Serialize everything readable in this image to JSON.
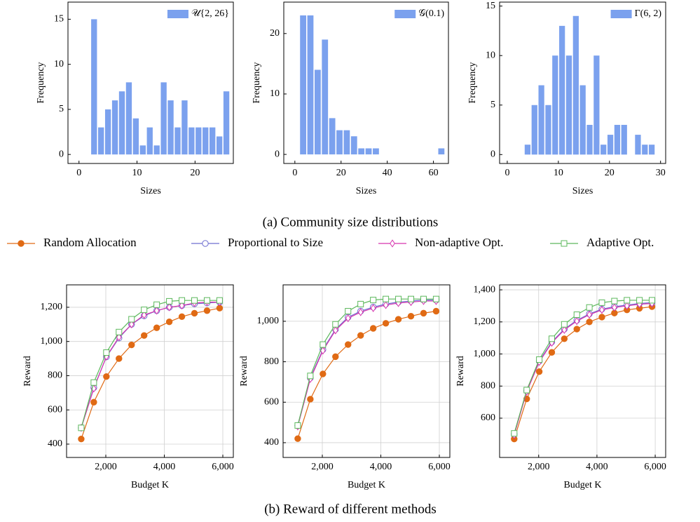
{
  "chart_data": [
    {
      "type": "histogram",
      "xlabel": "Sizes",
      "ylabel": "Frequency",
      "legend": "upper right",
      "series": [
        {
          "name": "𝒰{2, 26}",
          "color": "#7ba1ee",
          "values": [
            15,
            3,
            5,
            6,
            7,
            8,
            4,
            1,
            3,
            1,
            8,
            6,
            3,
            6,
            3,
            3,
            3,
            3,
            2,
            7
          ]
        }
      ],
      "bins": [
        2,
        3.2,
        4.4,
        5.6,
        6.8,
        8,
        9.2,
        10.4,
        11.6,
        12.8,
        14,
        15.2,
        16.4,
        17.6,
        18.8,
        20,
        21.2,
        22.4,
        23.6,
        24.8,
        26
      ],
      "xlim": [
        -1.9,
        26.6
      ],
      "ylim": [
        -1,
        16.9
      ],
      "xticks": [
        0,
        10,
        20
      ],
      "yticks": [
        0,
        5,
        10,
        15
      ]
    },
    {
      "type": "histogram",
      "xlabel": "Sizes",
      "ylabel": "Frequency",
      "legend": "upper right",
      "series": [
        {
          "name": "𝒢(0.1)",
          "color": "#7ba1ee",
          "values": [
            23,
            23,
            14,
            19,
            6,
            4,
            4,
            3,
            1,
            1,
            1,
            0,
            0,
            0,
            0,
            0,
            0,
            0,
            0,
            1
          ]
        }
      ],
      "bins": [
        2,
        5.15,
        8.3,
        11.45,
        14.6,
        17.75,
        20.9,
        24.05,
        27.2,
        30.35,
        33.5,
        36.65,
        39.8,
        42.95,
        46.1,
        49.25,
        52.4,
        55.55,
        58.7,
        61.85,
        65
      ],
      "xlim": [
        -4.8,
        66.5
      ],
      "ylim": [
        -1.5,
        25.2
      ],
      "xticks": [
        0,
        20,
        40,
        60
      ],
      "yticks": [
        0,
        10,
        20
      ]
    },
    {
      "type": "histogram",
      "xlabel": "Sizes",
      "ylabel": "Frequency",
      "legend": "upper right",
      "series": [
        {
          "name": "Γ(6, 2)",
          "color": "#7ba1ee",
          "values": [
            1,
            5,
            7,
            5,
            10,
            13,
            10,
            14,
            7,
            3,
            10,
            1,
            2,
            3,
            3,
            0,
            2,
            1,
            1
          ]
        }
      ],
      "bins": [
        3.3,
        4.65,
        6,
        7.35,
        8.7,
        10.05,
        11.4,
        12.75,
        14.1,
        15.45,
        16.8,
        18.15,
        19.5,
        20.85,
        22.2,
        23.55,
        24.9,
        26.25,
        27.6,
        28.95
      ],
      "xlim": [
        -1.5,
        31
      ],
      "ylim": [
        -0.9,
        15.4
      ],
      "xticks": [
        0,
        10,
        20,
        30
      ],
      "yticks": [
        0,
        5,
        10,
        15
      ]
    },
    {
      "type": "line",
      "xlabel": "Budget K",
      "ylabel": "Reward",
      "grid": true,
      "x": [
        1160,
        1590,
        2020,
        2450,
        2880,
        3310,
        3740,
        4170,
        4600,
        5030,
        5460,
        5890
      ],
      "series": [
        {
          "name": "Random Allocation",
          "color": "#e06a14",
          "marker": "circle",
          "values": [
            430,
            645,
            795,
            900,
            980,
            1035,
            1080,
            1115,
            1145,
            1165,
            1180,
            1195
          ]
        },
        {
          "name": "Proportional to Size",
          "color": "#6f6fd0",
          "marker": "circle-open",
          "values": [
            495,
            730,
            910,
            1020,
            1100,
            1150,
            1180,
            1200,
            1210,
            1220,
            1225,
            1230
          ]
        },
        {
          "name": "Non-adaptive Opt.",
          "color": "#d634ae",
          "marker": "diamond-open",
          "values": [
            495,
            725,
            912,
            1025,
            1100,
            1155,
            1180,
            1200,
            1210,
            1225,
            1230,
            1230
          ]
        },
        {
          "name": "Adaptive Opt.",
          "color": "#5cb85c",
          "marker": "square-open",
          "values": [
            495,
            760,
            935,
            1055,
            1130,
            1185,
            1215,
            1235,
            1240,
            1240,
            1240,
            1240
          ]
        }
      ],
      "xlim": [
        659,
        6359
      ],
      "ylim": [
        322,
        1331
      ],
      "xticks": [
        {
          "value": 2000,
          "label": "2,000"
        },
        {
          "value": 4000,
          "label": "4,000"
        },
        {
          "value": 6000,
          "label": "6,000"
        }
      ],
      "yticks": [
        400,
        600,
        800,
        {
          "value": 1000,
          "label": "1,000"
        },
        {
          "value": 1200,
          "label": "1,200"
        }
      ]
    },
    {
      "type": "line",
      "xlabel": "Budget K",
      "ylabel": "Reward",
      "grid": true,
      "x": [
        1160,
        1590,
        2020,
        2450,
        2880,
        3310,
        3740,
        4170,
        4600,
        5030,
        5460,
        5890
      ],
      "series": [
        {
          "color": "#e06a14",
          "marker": "circle",
          "values": [
            420,
            615,
            740,
            825,
            885,
            930,
            965,
            990,
            1010,
            1025,
            1040,
            1050
          ]
        },
        {
          "color": "#6f6fd0",
          "marker": "circle-open",
          "values": [
            485,
            720,
            860,
            960,
            1020,
            1050,
            1070,
            1085,
            1095,
            1100,
            1105,
            1105
          ]
        },
        {
          "color": "#d634ae",
          "marker": "diamond-open",
          "values": [
            480,
            715,
            855,
            955,
            1015,
            1045,
            1065,
            1080,
            1090,
            1095,
            1100,
            1100
          ]
        },
        {
          "color": "#5cb85c",
          "marker": "square-open",
          "values": [
            485,
            730,
            885,
            985,
            1050,
            1085,
            1105,
            1110,
            1110,
            1110,
            1110,
            1110
          ]
        }
      ],
      "xlim": [
        659,
        6359
      ],
      "ylim": [
        327,
        1180
      ],
      "xticks": [
        {
          "value": 2000,
          "label": "2,000"
        },
        {
          "value": 4000,
          "label": "4,000"
        },
        {
          "value": 6000,
          "label": "6,000"
        }
      ],
      "yticks": [
        400,
        600,
        800,
        {
          "value": 1000,
          "label": "1,000"
        }
      ]
    },
    {
      "type": "line",
      "xlabel": "Budget K",
      "ylabel": "Reward",
      "grid": true,
      "x": [
        1160,
        1590,
        2020,
        2450,
        2880,
        3310,
        3740,
        4170,
        4600,
        5030,
        5460,
        5890
      ],
      "series": [
        {
          "color": "#e06a14",
          "marker": "circle",
          "values": [
            470,
            720,
            890,
            1010,
            1095,
            1155,
            1200,
            1230,
            1255,
            1275,
            1285,
            1295
          ]
        },
        {
          "color": "#6f6fd0",
          "marker": "circle-open",
          "values": [
            500,
            770,
            955,
            1075,
            1155,
            1210,
            1250,
            1280,
            1295,
            1305,
            1315,
            1320
          ]
        },
        {
          "color": "#d634ae",
          "marker": "diamond-open",
          "values": [
            495,
            765,
            950,
            1070,
            1150,
            1205,
            1245,
            1275,
            1290,
            1300,
            1310,
            1315
          ]
        },
        {
          "color": "#5cb85c",
          "marker": "square-open",
          "values": [
            505,
            775,
            965,
            1095,
            1185,
            1245,
            1290,
            1320,
            1330,
            1335,
            1335,
            1335
          ]
        }
      ],
      "xlim": [
        659,
        6359
      ],
      "ylim": [
        355,
        1431
      ],
      "xticks": [
        {
          "value": 2000,
          "label": "2,000"
        },
        {
          "value": 4000,
          "label": "4,000"
        },
        {
          "value": 6000,
          "label": "6,000"
        }
      ],
      "yticks": [
        600,
        800,
        {
          "value": 1000,
          "label": "1,000"
        },
        {
          "value": 1200,
          "label": "1,200"
        },
        {
          "value": 1400,
          "label": "1,400"
        }
      ]
    }
  ],
  "captions": [
    "(a) Community size distributions",
    "(b) Reward of different methods"
  ]
}
